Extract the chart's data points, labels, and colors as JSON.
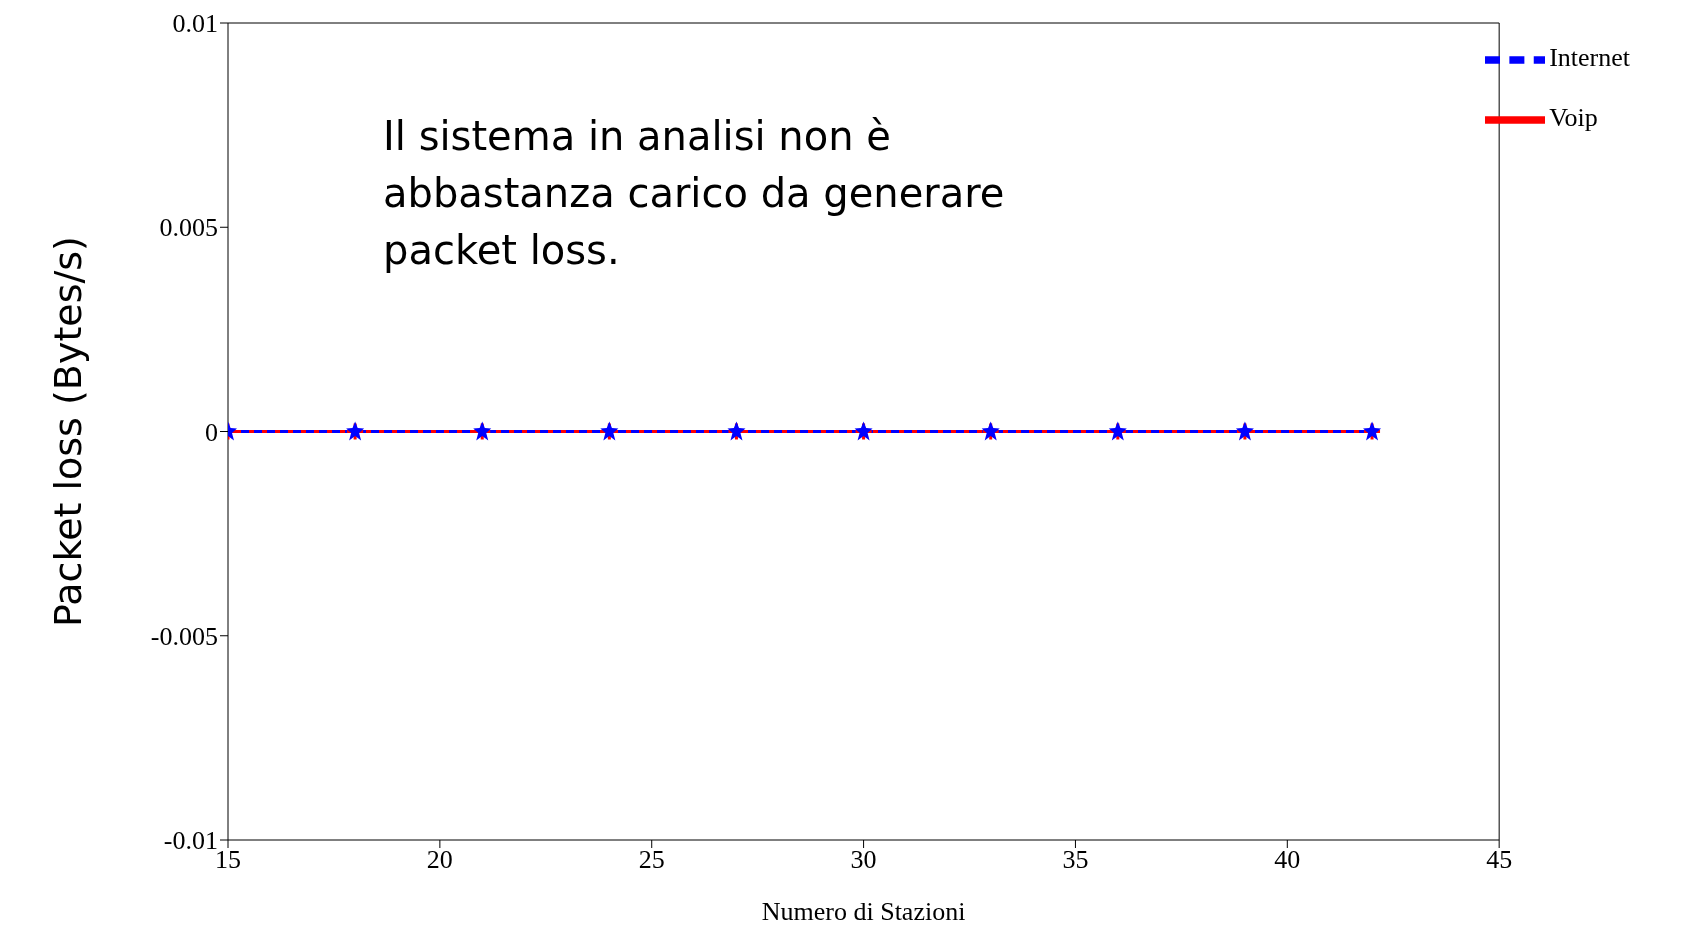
{
  "chart_data": {
    "type": "line",
    "xlabel": "Numero di Stazioni",
    "ylabel": "Packet loss (Bytes/s)",
    "x": [
      15,
      18,
      21,
      24,
      27,
      30,
      33,
      36,
      39,
      42
    ],
    "series": [
      {
        "name": "Voip",
        "color": "#ff0000",
        "values": [
          0,
          0,
          0,
          0,
          0,
          0,
          0,
          0,
          0,
          0
        ],
        "marker": "cross",
        "line_style": "solid"
      },
      {
        "name": "Internet",
        "color": "#0000ff",
        "values": [
          0,
          0,
          0,
          0,
          0,
          0,
          0,
          0,
          0,
          0
        ],
        "marker": "star",
        "line_style": "dashed"
      }
    ],
    "xlim": [
      15,
      45
    ],
    "xticks": [
      15,
      20,
      25,
      30,
      35,
      40,
      45
    ],
    "ylim": [
      -0.01,
      0.01
    ],
    "yticks": [
      -0.01,
      -0.005,
      0,
      0.005,
      0.01
    ],
    "grid": false,
    "legend": "top right",
    "annotations": [
      "Il sistema in analisi non è abbastanza carico da generare packet loss."
    ]
  }
}
